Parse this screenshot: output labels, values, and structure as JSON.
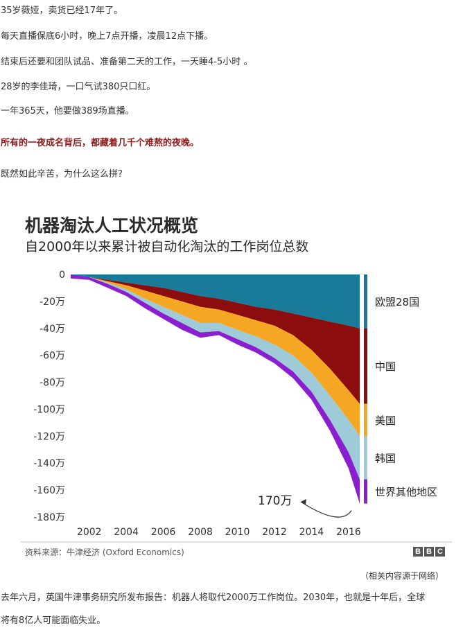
{
  "article": {
    "paragraphs": [
      "35岁薇娅，卖货已经17年了。",
      "每天直播保底6小时，晚上7点开播，凌晨12点下播。",
      "结束后还要和团队试品、准备第二天的工作，一天睡4-5小时 。",
      "28岁的李佳琦，一口气试380只口红。",
      "一年365天，他要做389场直播。"
    ],
    "highlight": "所有的一夜成名背后，都藏着几千个难熬的夜晚。",
    "question": "既然如此辛苦，为什么这么拼？",
    "image_caption": "（相关内容源于网络）",
    "closing_line1": "去年六月，英国牛津事务研究所发布报告：机器人将取代2000万工作岗位。2030年，也就是十年后，全球",
    "closing_line2": "将有8亿人可能面临失业。"
  },
  "chart_data": {
    "type": "area",
    "title": "机器淘汰人工状况概览",
    "subtitle": "自2000年以来累计被自动化淘汰的工作岗位总数",
    "source": "资料来源：牛津经济 (Oxford Economics)",
    "publisher": "BBC",
    "annotation": "170万",
    "y_tick_labels": [
      "0",
      "-20万",
      "-40万",
      "-60万",
      "-80万",
      "-100万",
      "-120万",
      "-140万",
      "-160万",
      "-180万"
    ],
    "x_tick_labels": [
      "2002",
      "2004",
      "2006",
      "2008",
      "2010",
      "2012",
      "2014",
      "2016"
    ],
    "ylim": [
      -180,
      0
    ],
    "xlim": [
      2001,
      2016.6
    ],
    "stacked": true,
    "x": [
      2001,
      2002,
      2003,
      2004,
      2005,
      2006,
      2007,
      2008,
      2009,
      2010,
      2011,
      2012,
      2013,
      2014,
      2015,
      2016,
      2016.6
    ],
    "series": [
      {
        "name": "欧盟28国",
        "color": "#1a7a9a",
        "values": [
          0,
          -2,
          -4,
          -6,
          -8,
          -10,
          -13,
          -16,
          -18,
          -21,
          -24,
          -26,
          -29,
          -32,
          -35,
          -38,
          -40
        ]
      },
      {
        "name": "中国",
        "color": "#8b0d0d",
        "values": [
          0,
          0,
          -1,
          -2,
          -4,
          -6,
          -7,
          -8,
          -8,
          -9,
          -10,
          -12,
          -16,
          -24,
          -35,
          -48,
          -56
        ]
      },
      {
        "name": "美国",
        "color": "#f5a623",
        "values": [
          0,
          0,
          -1,
          -3,
          -6,
          -8,
          -10,
          -12,
          -10,
          -11,
          -12,
          -14,
          -15,
          -17,
          -20,
          -22,
          -24
        ]
      },
      {
        "name": "韩国",
        "color": "#9fcad8",
        "values": [
          0,
          0,
          -1,
          -2,
          -3,
          -5,
          -6,
          -7,
          -6,
          -7,
          -8,
          -10,
          -12,
          -14,
          -18,
          -24,
          -32
        ]
      },
      {
        "name": "世界其他地区",
        "color": "#8a1fd0",
        "values": [
          -3,
          -2,
          -3,
          -3,
          -4,
          -4,
          -5,
          -4,
          -3,
          -4,
          -4,
          -4,
          -5,
          -6,
          -8,
          -12,
          -18
        ]
      }
    ],
    "legend_position": "right"
  }
}
